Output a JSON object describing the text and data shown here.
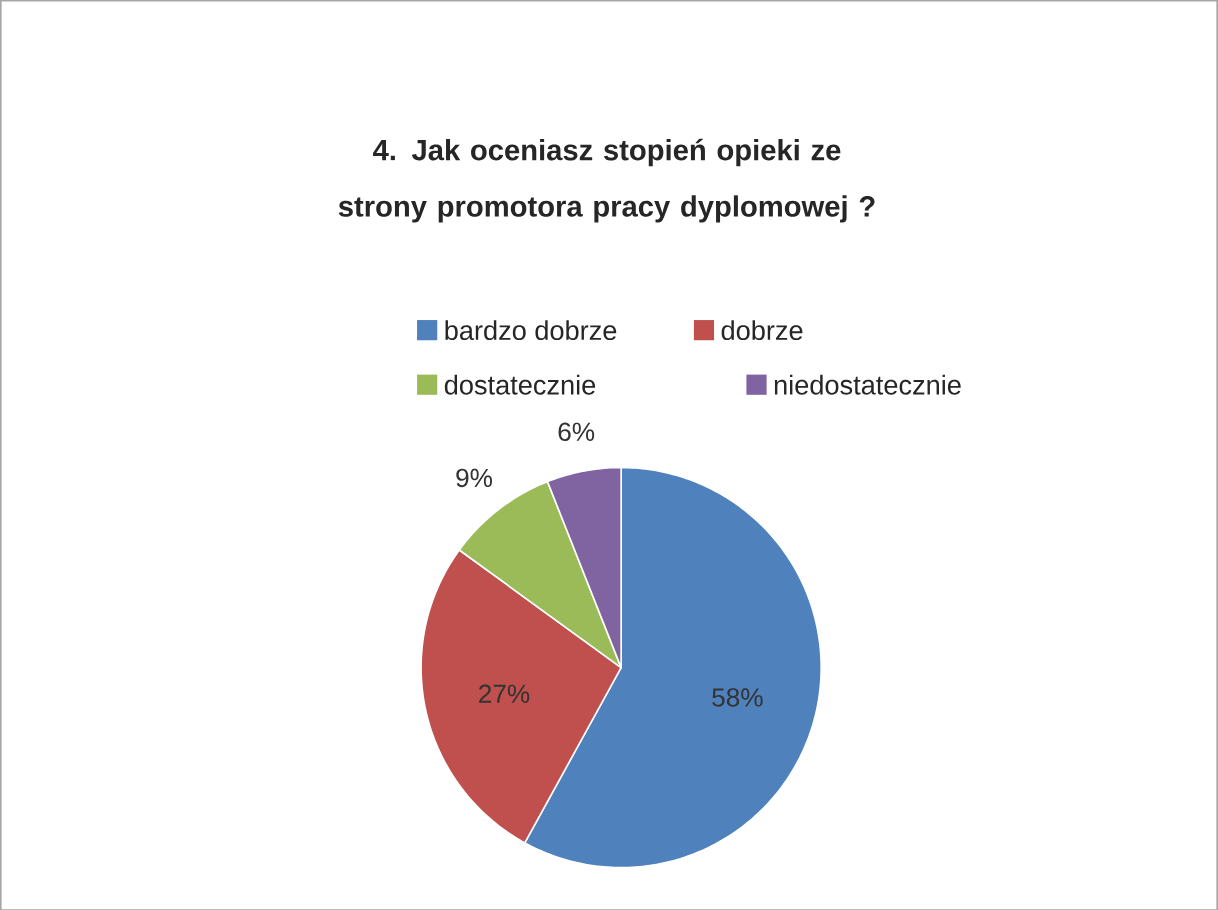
{
  "chart_data": {
    "type": "pie",
    "title": "4. Jak oceniasz stopień opieki ze strony promotora pracy dyplomowej ?",
    "categories": [
      "bardzo dobrze",
      "dobrze",
      "dostatecznie",
      "niedostatecznie"
    ],
    "values": [
      58,
      27,
      9,
      6
    ],
    "colors": [
      "#4f81bd",
      "#c0504d",
      "#9bbb59",
      "#8064a2"
    ],
    "value_labels": [
      "58%",
      "27%",
      "9%",
      "6%"
    ],
    "legend": "top"
  }
}
